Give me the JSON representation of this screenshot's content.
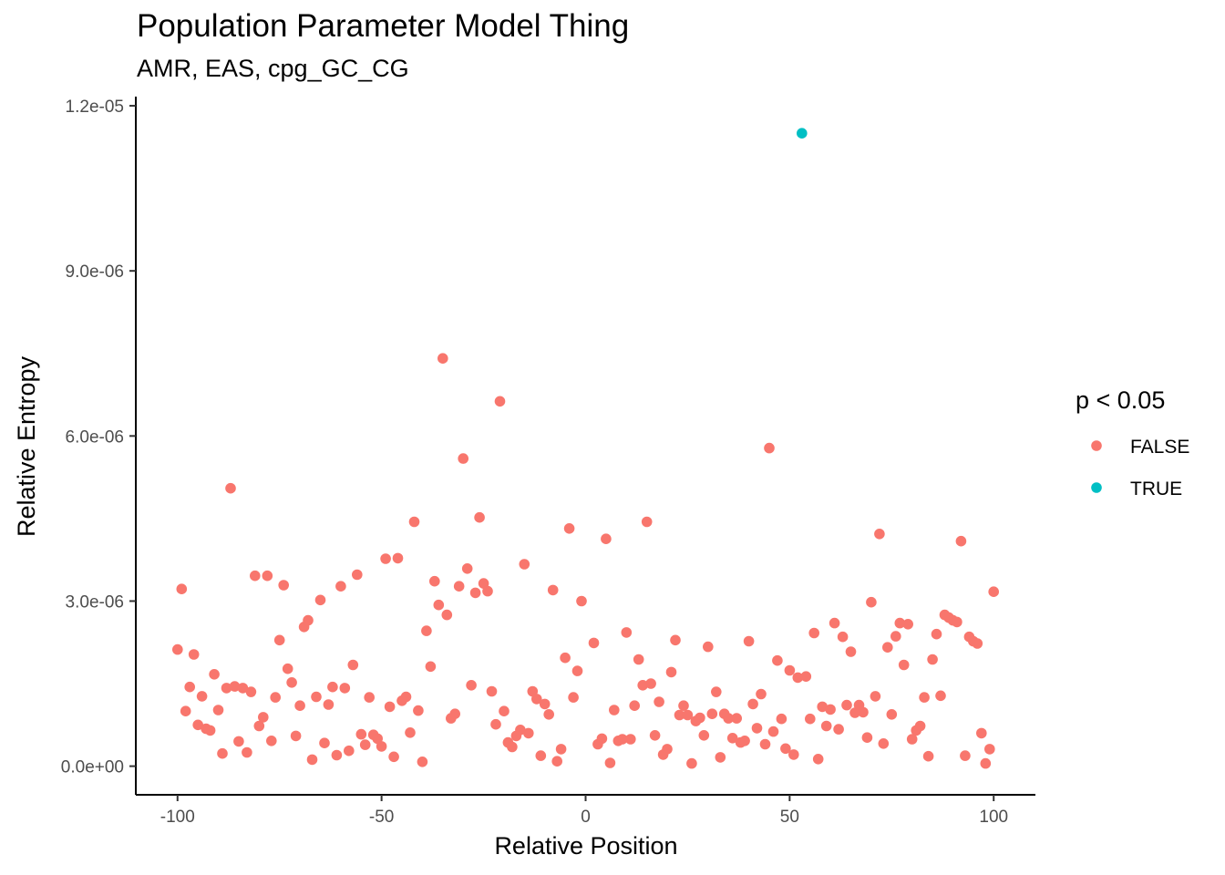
{
  "chart_data": {
    "type": "scatter",
    "title": "Population Parameter Model Thing",
    "subtitle": "AMR, EAS, cpg_GC_CG",
    "xlabel": "Relative Position",
    "ylabel": "Relative Entropy",
    "xlim": [
      -110,
      110
    ],
    "ylim": [
      -5.2e-07,
      1.215e-05
    ],
    "x_ticks": [
      -100,
      -50,
      0,
      50,
      100
    ],
    "x_tick_labels": [
      "-100",
      "-50",
      "0",
      "50",
      "100"
    ],
    "y_ticks": [
      0,
      3e-06,
      6e-06,
      9e-06,
      1.2e-05
    ],
    "y_tick_labels": [
      "0.0e+00",
      "3.0e-06",
      "6.0e-06",
      "9.0e-06",
      "1.2e-05"
    ],
    "grid": false,
    "legend": {
      "title": "p < 0.05",
      "placement": "right",
      "entries": [
        {
          "label": "FALSE",
          "color": "#F8766D"
        },
        {
          "label": "TRUE",
          "color": "#00BFC4"
        }
      ]
    },
    "series": [
      {
        "name": "FALSE",
        "color": "#F8766D",
        "points": [
          [
            -100,
            2.12e-06
          ],
          [
            -99,
            3.22e-06
          ],
          [
            -98,
            1e-06
          ],
          [
            -97,
            1.44e-06
          ],
          [
            -96,
            2.03e-06
          ],
          [
            -95,
            7.5e-07
          ],
          [
            -94,
            1.27e-06
          ],
          [
            -93,
            6.8e-07
          ],
          [
            -92,
            6.5e-07
          ],
          [
            -91,
            1.67e-06
          ],
          [
            -90,
            1.02e-06
          ],
          [
            -89,
            2.3e-07
          ],
          [
            -88,
            1.42e-06
          ],
          [
            -87,
            5.05e-06
          ],
          [
            -86,
            1.45e-06
          ],
          [
            -85,
            4.5e-07
          ],
          [
            -84,
            1.42e-06
          ],
          [
            -83,
            2.5e-07
          ],
          [
            -82,
            1.35e-06
          ],
          [
            -81,
            3.46e-06
          ],
          [
            -80,
            7.3e-07
          ],
          [
            -79,
            8.9e-07
          ],
          [
            -78,
            3.46e-06
          ],
          [
            -77,
            4.6e-07
          ],
          [
            -76,
            1.25e-06
          ],
          [
            -75,
            2.29e-06
          ],
          [
            -74,
            3.29e-06
          ],
          [
            -73,
            1.77e-06
          ],
          [
            -72,
            1.52e-06
          ],
          [
            -71,
            5.5e-07
          ],
          [
            -70,
            1.1e-06
          ],
          [
            -69,
            2.53e-06
          ],
          [
            -68,
            2.65e-06
          ],
          [
            -67,
            1.2e-07
          ],
          [
            -66,
            1.26e-06
          ],
          [
            -65,
            3.02e-06
          ],
          [
            -64,
            4.2e-07
          ],
          [
            -63,
            1.12e-06
          ],
          [
            -62,
            1.44e-06
          ],
          [
            -61,
            2e-07
          ],
          [
            -60,
            3.27e-06
          ],
          [
            -59,
            1.42e-06
          ],
          [
            -58,
            2.8e-07
          ],
          [
            -57,
            1.84e-06
          ],
          [
            -56,
            3.48e-06
          ],
          [
            -55,
            5.8e-07
          ],
          [
            -54,
            3.9e-07
          ],
          [
            -53,
            1.25e-06
          ],
          [
            -52,
            5.7e-07
          ],
          [
            -51,
            5e-07
          ],
          [
            -50,
            3.6e-07
          ],
          [
            -49,
            3.77e-06
          ],
          [
            -48,
            1.08e-06
          ],
          [
            -47,
            1.7e-07
          ],
          [
            -46,
            3.78e-06
          ],
          [
            -45,
            1.19e-06
          ],
          [
            -44,
            1.26e-06
          ],
          [
            -43,
            6.1e-07
          ],
          [
            -42,
            4.44e-06
          ],
          [
            -41,
            1.01e-06
          ],
          [
            -40,
            8e-08
          ],
          [
            -39,
            2.46e-06
          ],
          [
            -38,
            1.81e-06
          ],
          [
            -37,
            3.36e-06
          ],
          [
            -36,
            2.93e-06
          ],
          [
            -35,
            7.41e-06
          ],
          [
            -34,
            2.75e-06
          ],
          [
            -33,
            8.7e-07
          ],
          [
            -32,
            9.5e-07
          ],
          [
            -31,
            3.27e-06
          ],
          [
            -30,
            5.59e-06
          ],
          [
            -29,
            3.59e-06
          ],
          [
            -28,
            1.47e-06
          ],
          [
            -27,
            3.15e-06
          ],
          [
            -26,
            4.52e-06
          ],
          [
            -25,
            3.32e-06
          ],
          [
            -24,
            3.18e-06
          ],
          [
            -23,
            1.36e-06
          ],
          [
            -22,
            7.6e-07
          ],
          [
            -21,
            6.63e-06
          ],
          [
            -20,
            1e-06
          ],
          [
            -19,
            4.3e-07
          ],
          [
            -18,
            3.5e-07
          ],
          [
            -17,
            5.5e-07
          ],
          [
            -16,
            6.6e-07
          ],
          [
            -15,
            3.67e-06
          ],
          [
            -14,
            6e-07
          ],
          [
            -13,
            1.36e-06
          ],
          [
            -12,
            1.22e-06
          ],
          [
            -11,
            1.9e-07
          ],
          [
            -10,
            1.13e-06
          ],
          [
            -9,
            9.4e-07
          ],
          [
            -8,
            3.2e-06
          ],
          [
            -7,
            9e-08
          ],
          [
            -6,
            3.1e-07
          ],
          [
            -5,
            1.97e-06
          ],
          [
            -4,
            4.32e-06
          ],
          [
            -3,
            1.25e-06
          ],
          [
            -2,
            1.73e-06
          ],
          [
            -1,
            3e-06
          ],
          [
            2,
            2.24e-06
          ],
          [
            3,
            4e-07
          ],
          [
            4,
            5e-07
          ],
          [
            5,
            4.13e-06
          ],
          [
            6,
            6e-08
          ],
          [
            7,
            1.02e-06
          ],
          [
            8,
            4.6e-07
          ],
          [
            9,
            4.9e-07
          ],
          [
            10,
            2.43e-06
          ],
          [
            11,
            4.9e-07
          ],
          [
            12,
            1.1e-06
          ],
          [
            13,
            1.94e-06
          ],
          [
            14,
            1.47e-06
          ],
          [
            15,
            4.44e-06
          ],
          [
            16,
            1.5e-06
          ],
          [
            17,
            5.6e-07
          ],
          [
            18,
            1.17e-06
          ],
          [
            19,
            2.1e-07
          ],
          [
            20,
            3.1e-07
          ],
          [
            21,
            1.71e-06
          ],
          [
            22,
            2.29e-06
          ],
          [
            23,
            9.3e-07
          ],
          [
            24,
            1.1e-06
          ],
          [
            25,
            9.3e-07
          ],
          [
            26,
            5e-08
          ],
          [
            27,
            8.2e-07
          ],
          [
            28,
            8.8e-07
          ],
          [
            29,
            5.6e-07
          ],
          [
            30,
            2.17e-06
          ],
          [
            31,
            9.5e-07
          ],
          [
            32,
            1.35e-06
          ],
          [
            33,
            1.6e-07
          ],
          [
            34,
            9.5e-07
          ],
          [
            35,
            8.7e-07
          ],
          [
            36,
            5.1e-07
          ],
          [
            37,
            8.7e-07
          ],
          [
            38,
            4.3e-07
          ],
          [
            39,
            4.6e-07
          ],
          [
            40,
            2.27e-06
          ],
          [
            41,
            1.13e-06
          ],
          [
            42,
            6.9e-07
          ],
          [
            43,
            1.31e-06
          ],
          [
            44,
            4e-07
          ],
          [
            45,
            5.78e-06
          ],
          [
            46,
            6.3e-07
          ],
          [
            47,
            1.92e-06
          ],
          [
            48,
            8.6e-07
          ],
          [
            49,
            3.2e-07
          ],
          [
            50,
            1.74e-06
          ],
          [
            51,
            2.1e-07
          ],
          [
            52,
            1.61e-06
          ],
          [
            54,
            1.63e-06
          ],
          [
            55,
            8.6e-07
          ],
          [
            56,
            2.42e-06
          ],
          [
            57,
            1.3e-07
          ],
          [
            58,
            1.08e-06
          ],
          [
            59,
            7.3e-07
          ],
          [
            60,
            1.03e-06
          ],
          [
            61,
            2.6e-06
          ],
          [
            62,
            6.7e-07
          ],
          [
            63,
            2.35e-06
          ],
          [
            64,
            1.11e-06
          ],
          [
            65,
            2.08e-06
          ],
          [
            66,
            9.7e-07
          ],
          [
            67,
            1.11e-06
          ],
          [
            68,
            9.8e-07
          ],
          [
            69,
            5.2e-07
          ],
          [
            70,
            2.98e-06
          ],
          [
            71,
            1.27e-06
          ],
          [
            72,
            4.22e-06
          ],
          [
            73,
            4.1e-07
          ],
          [
            74,
            2.16e-06
          ],
          [
            75,
            9.4e-07
          ],
          [
            76,
            2.36e-06
          ],
          [
            77,
            2.6e-06
          ],
          [
            78,
            1.84e-06
          ],
          [
            79,
            2.58e-06
          ],
          [
            80,
            4.9e-07
          ],
          [
            81,
            6.5e-07
          ],
          [
            82,
            7.3e-07
          ],
          [
            83,
            1.25e-06
          ],
          [
            84,
            1.8e-07
          ],
          [
            85,
            1.94e-06
          ],
          [
            86,
            2.4e-06
          ],
          [
            87,
            1.28e-06
          ],
          [
            88,
            2.75e-06
          ],
          [
            89,
            2.7e-06
          ],
          [
            90,
            2.65e-06
          ],
          [
            91,
            2.62e-06
          ],
          [
            92,
            4.09e-06
          ],
          [
            93,
            1.9e-07
          ],
          [
            94,
            2.35e-06
          ],
          [
            95,
            2.27e-06
          ],
          [
            96,
            2.23e-06
          ],
          [
            97,
            6e-07
          ],
          [
            98,
            5e-08
          ],
          [
            99,
            3.1e-07
          ],
          [
            100,
            3.17e-06
          ]
        ]
      },
      {
        "name": "TRUE",
        "color": "#00BFC4",
        "points": [
          [
            53,
            1.15e-05
          ]
        ]
      }
    ]
  }
}
